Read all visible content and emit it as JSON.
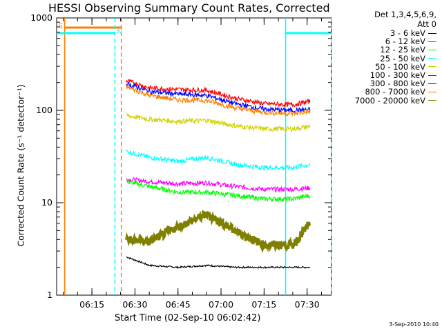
{
  "title": "HESSI Observing Summary Count Rates, Corrected",
  "legend_header": [
    "Det 1,3,4,5,6,9,",
    "Att 0"
  ],
  "footer_stamp": "3-Sep-2010 10:40",
  "colors": {
    "3 - 6 keV": "#000000",
    "6 - 12 keV": "#ff00ff",
    "12 - 25 keV": "#00ff00",
    "25 - 50 keV": "#00ffff",
    "50 - 100 keV": "#d2d200",
    "100 - 300 keV": "#ff0000",
    "300 - 800 keV": "#0000ff",
    "800 - 7000 keV": "#ff8000",
    "7000 - 20000 keV": "#808000"
  },
  "markers": {
    "S": "S",
    "N": "N"
  },
  "chart_data": {
    "type": "line",
    "title": "HESSI Observing Summary Count Rates, Corrected",
    "xlabel": "Start Time (02-Sep-10 06:02:42)",
    "ylabel": "Corrected Count Rate (s⁻¹ detector⁻¹)",
    "y_scale": "log",
    "ylim": [
      1,
      1000
    ],
    "xlim": [
      "06:02:42",
      "07:38:30"
    ],
    "x_ticks": [
      "06:15",
      "06:30",
      "06:45",
      "07:00",
      "07:15",
      "07:30"
    ],
    "y_ticks": [
      "1",
      "10",
      "100",
      "1000"
    ],
    "grid": false,
    "legend_position": "right, outside plot",
    "x": [
      "06:27",
      "06:35",
      "06:45",
      "06:55",
      "07:05",
      "07:15",
      "07:25",
      "07:31"
    ],
    "series": [
      {
        "name": "3 - 6 keV",
        "values": [
          2.6,
          2.1,
          2.0,
          2.1,
          2.0,
          2.0,
          2.0,
          2.0
        ]
      },
      {
        "name": "6 - 12 keV",
        "values": [
          18,
          17,
          16,
          16.5,
          15,
          14,
          14,
          14.5
        ]
      },
      {
        "name": "12 - 25 keV",
        "values": [
          17,
          15,
          13,
          13,
          12,
          11,
          11,
          12
        ]
      },
      {
        "name": "25 - 50 keV",
        "values": [
          36,
          31,
          28,
          31,
          26,
          24,
          24,
          26
        ]
      },
      {
        "name": "50 - 100 keV",
        "values": [
          88,
          80,
          76,
          78,
          68,
          63,
          63,
          67
        ]
      },
      {
        "name": "100 - 300 keV",
        "values": [
          210,
          175,
          168,
          165,
          135,
          118,
          115,
          125
        ]
      },
      {
        "name": "300 - 800 keV",
        "values": [
          195,
          160,
          150,
          145,
          118,
          103,
          100,
          102
        ]
      },
      {
        "name": "800 - 7000 keV",
        "values": [
          180,
          145,
          130,
          128,
          106,
          95,
          92,
          97
        ]
      },
      {
        "name": "7000 - 20000 keV",
        "values": [
          4.0,
          3.8,
          5.5,
          7.5,
          5.0,
          3.5,
          3.5,
          6.0
        ]
      }
    ],
    "attenuator_state": {
      "S": [
        [
          "06:05:30",
          "06:25:15"
        ]
      ]
    },
    "saa_intervals": {
      "N": [
        [
          "06:02:42",
          "06:23:00"
        ],
        [
          "07:22:30",
          "07:38:30"
        ]
      ]
    }
  }
}
